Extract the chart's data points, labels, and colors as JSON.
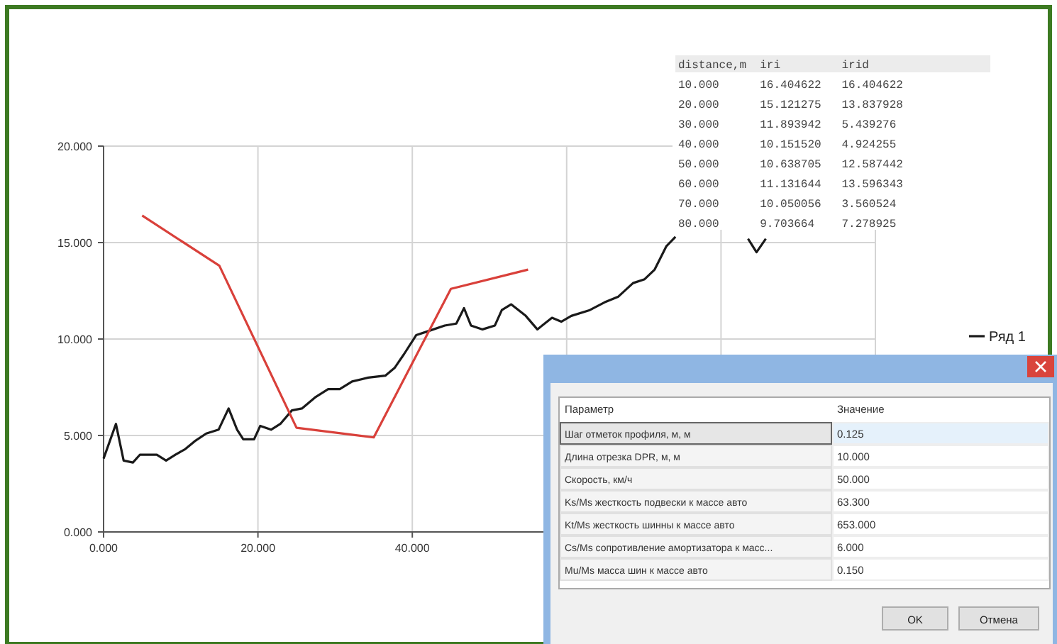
{
  "chart_data": {
    "type": "line",
    "xlim": [
      0,
      100
    ],
    "ylim": [
      0,
      20
    ],
    "xticks": [
      {
        "value": 0,
        "label": "0.000"
      },
      {
        "value": 20,
        "label": "20.000"
      },
      {
        "value": 40,
        "label": "40.000"
      },
      {
        "value": 60,
        "label": null
      },
      {
        "value": 80,
        "label": null
      },
      {
        "value": 100,
        "label": null
      }
    ],
    "yticks": [
      {
        "value": 0,
        "label": "0.000"
      },
      {
        "value": 5,
        "label": "5.000"
      },
      {
        "value": 10,
        "label": "10.000"
      },
      {
        "value": 15,
        "label": "15.000"
      },
      {
        "value": 20,
        "label": "20.000"
      }
    ],
    "grid": true,
    "legend": "right",
    "line_style": "solid",
    "marker": "none",
    "series": [
      {
        "name": "Ряд 1",
        "color": "#1a1a1a",
        "x": [
          0,
          1.6,
          2.6,
          3.8,
          4.7,
          6.9,
          8.1,
          9.3,
          10.6,
          11.8,
          13.3,
          14.9,
          16.2,
          17.3,
          18.1,
          19.5,
          20.3,
          21.7,
          22.9,
          24.4,
          25.7,
          27.5,
          29.1,
          30.6,
          32.2,
          34.3,
          36.5,
          37.7,
          38.9,
          40.5,
          42,
          44.2,
          45.7,
          46.7,
          47.6,
          49.1,
          50.7,
          51.6,
          52.8,
          54.7,
          56.2,
          58.1,
          59.3,
          60.6,
          63,
          64.9,
          66.7,
          68.6,
          70.1,
          71.4,
          72.9,
          74.1,
          80,
          83.5,
          84.6,
          85.8
        ],
        "values": [
          3.8,
          5.6,
          3.7,
          3.6,
          4.0,
          4.0,
          3.7,
          4.0,
          4.3,
          4.7,
          5.1,
          5.3,
          6.4,
          5.3,
          4.8,
          4.8,
          5.5,
          5.3,
          5.6,
          6.3,
          6.4,
          7.0,
          7.4,
          7.4,
          7.8,
          8.0,
          8.1,
          8.5,
          9.2,
          10.2,
          10.4,
          10.7,
          10.8,
          11.6,
          10.7,
          10.5,
          10.7,
          11.5,
          11.8,
          11.2,
          10.5,
          11.1,
          10.9,
          11.2,
          11.5,
          11.9,
          12.2,
          12.9,
          13.1,
          13.6,
          14.8,
          15.3,
          null,
          15.2,
          14.5,
          15.2
        ]
      },
      {
        "color": "#d9403a",
        "x": [
          5,
          15,
          25,
          35,
          45,
          55
        ],
        "values": [
          16.4,
          13.8,
          5.4,
          4.9,
          12.6,
          13.6
        ]
      }
    ],
    "annotations": [
      "distance,m  iri         irid",
      "10.000      16.404622   16.404622",
      "20.000      15.121275   13.837928",
      "30.000      11.893942   5.439276",
      "40.000      10.151520   4.924255",
      "50.000      10.638705   12.587442",
      "60.000      11.131644   13.596343",
      "70.000      10.050056   3.560524",
      "80.000      9.703664    7.278925",
      "Параметр",
      "Значение",
      "Шаг отметок профиля, м, м",
      "0.125",
      "Длина отрезка DPR, м, м",
      "10.000",
      "Скорость, км/ч",
      "50.000",
      "Ks/Ms жесткость подвески к массе авто",
      "63.300",
      "Kt/Ms жесткость шинны к массе авто",
      "653.000",
      "Cs/Ms сопротивление амортизатора к масс...",
      "6.000",
      "Mu/Ms масса шин к массе авто",
      "0.150",
      "OK",
      "Отмена"
    ]
  }
}
